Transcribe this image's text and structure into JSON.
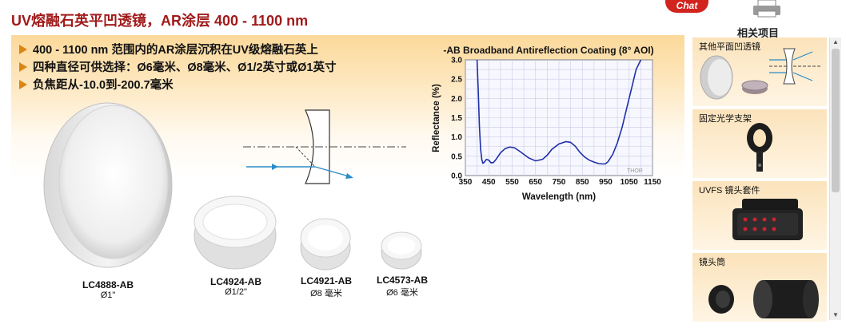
{
  "header": {
    "title": "UV熔融石英平凹透镜，AR涂层 400 - 1100 nm",
    "chat_label": "Chat",
    "related_label": "相关项目"
  },
  "bullets": [
    "400 - 1100 nm 范围内的AR涂层沉积在UV级熔融石英上",
    "四种直径可供选择：Ø6毫米、Ø8毫米、Ø1/2英寸或Ø1英寸",
    "负焦距从-10.0到-200.7毫米"
  ],
  "lenses": [
    {
      "part": "LC4888-AB",
      "diameter": "Ø1\""
    },
    {
      "part": "LC4924-AB",
      "diameter": "Ø1/2\""
    },
    {
      "part": "LC4921-AB",
      "diameter": "Ø8 毫米"
    },
    {
      "part": "LC4573-AB",
      "diameter": "Ø6 毫米"
    }
  ],
  "chart_data": {
    "type": "line",
    "title": "-AB Broadband Antireflection Coating (8° AOI)",
    "xlabel": "Wavelength (nm)",
    "ylabel": "Reflectance (%)",
    "xlim": [
      350,
      1150
    ],
    "ylim": [
      0,
      3.0
    ],
    "x_ticks": [
      "350",
      "450",
      "550",
      "650",
      "750",
      "850",
      "950",
      "1050",
      "1150"
    ],
    "y_ticks": [
      "0.0",
      "0.5",
      "1.0",
      "1.5",
      "2.0",
      "2.5",
      "3.0"
    ],
    "grid": true,
    "watermark": "THOR",
    "color": "#1f2fa8",
    "series": [
      {
        "x": [
          400,
          405,
          410,
          415,
          420,
          425,
          430,
          440,
          450,
          460,
          470,
          480,
          500,
          520,
          540,
          560,
          580,
          600,
          620,
          650,
          680,
          700,
          720,
          750,
          780,
          800,
          820,
          840,
          860,
          880,
          900,
          920,
          940,
          950,
          960,
          980,
          1000,
          1020,
          1040,
          1060,
          1080,
          1100
        ],
        "y": [
          3.0,
          2.2,
          1.3,
          0.7,
          0.42,
          0.32,
          0.34,
          0.42,
          0.4,
          0.33,
          0.34,
          0.41,
          0.59,
          0.7,
          0.74,
          0.72,
          0.64,
          0.55,
          0.46,
          0.38,
          0.42,
          0.53,
          0.68,
          0.82,
          0.88,
          0.86,
          0.76,
          0.6,
          0.48,
          0.4,
          0.35,
          0.31,
          0.3,
          0.31,
          0.36,
          0.55,
          0.85,
          1.25,
          1.75,
          2.25,
          2.75,
          3.0
        ]
      }
    ]
  },
  "sidebar": {
    "items": [
      {
        "label": "其他平面凹透镜"
      },
      {
        "label": "固定光学支架"
      },
      {
        "label": "UVFS 镜头套件"
      },
      {
        "label": "镜头筒"
      }
    ]
  }
}
